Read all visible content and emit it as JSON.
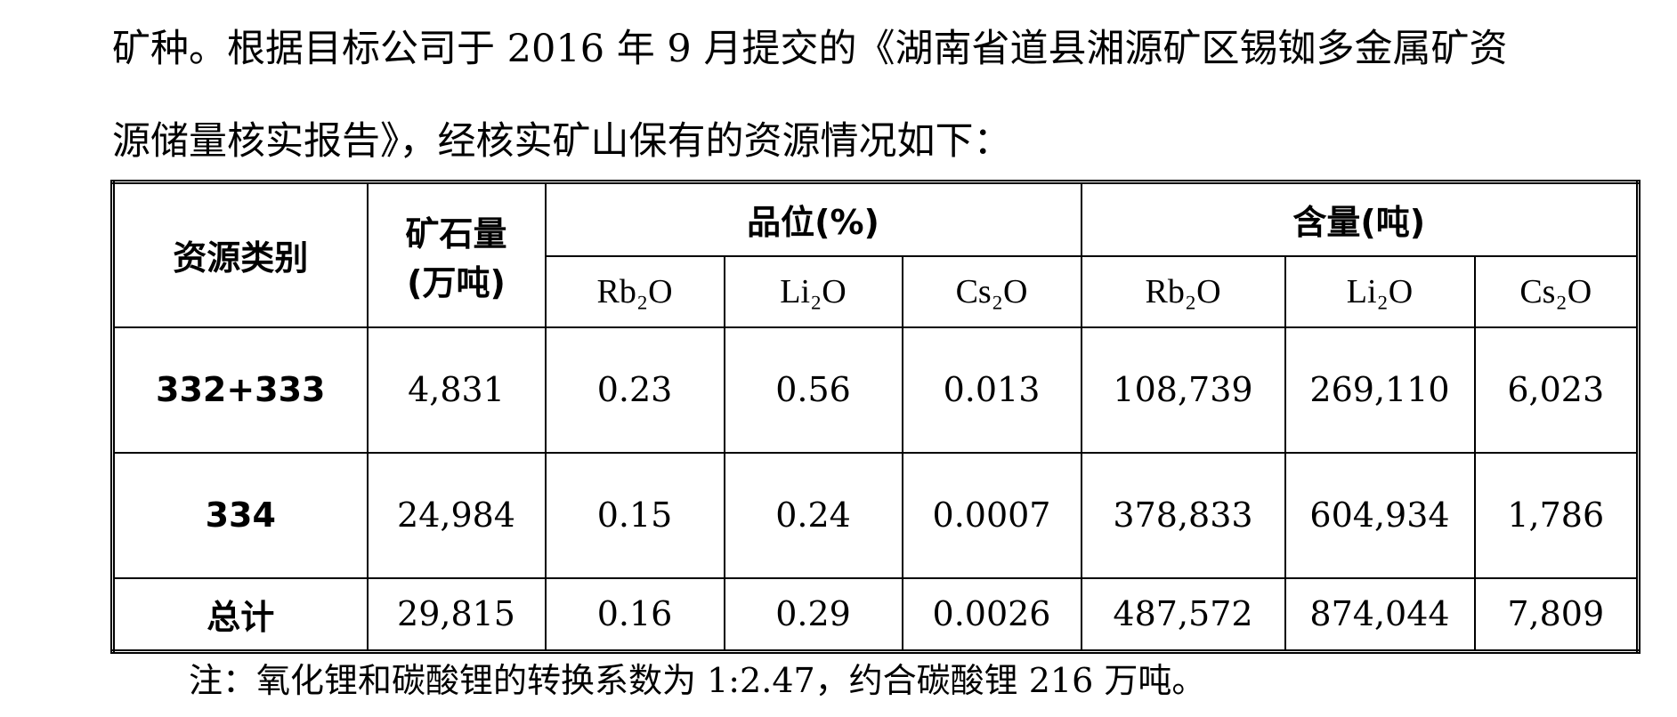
{
  "paragraph": {
    "lines": [
      "矿种。根据目标公司于 2016 年 9 月提交的《湖南省道县湘源矿区锡铷多金属矿资",
      "源储量核实报告》，经核实矿山保有的资源情况如下："
    ]
  },
  "table": {
    "headers": {
      "category": "资源类别",
      "ore_line1": "矿石量",
      "ore_line2": "(万吨)",
      "grade": "品位(%)",
      "content": "含量(吨)",
      "sub": [
        "Rb₂O",
        "Li₂O",
        "Cs₂O",
        "Rb₂O",
        "Li₂O",
        "Cs₂O"
      ]
    },
    "rows": [
      [
        "332+333",
        "4,831",
        "0.23",
        "0.56",
        "0.013",
        "108,739",
        "269,110",
        "6,023"
      ],
      [
        "334",
        "24,984",
        "0.15",
        "0.24",
        "0.0007",
        "378,833",
        "604,934",
        "1,786"
      ],
      [
        "总计",
        "29,815",
        "0.16",
        "0.29",
        "0.0026",
        "487,572",
        "874,044",
        "7,809"
      ]
    ]
  },
  "note": "注：氧化锂和碳酸锂的转换系数为 1:2.47，约合碳酸锂 216 万吨。"
}
